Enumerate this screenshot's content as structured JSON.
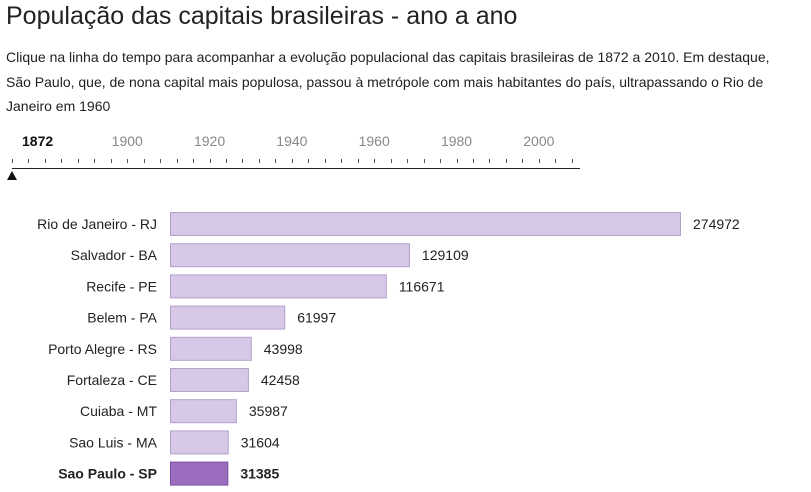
{
  "page": {
    "title": "População das capitais brasileiras - ano a ano",
    "description": "Clique na linha do tempo para acompanhar a evolução populacional das capitais brasileiras de 1872 a 2010. Em destaque, São Paulo, que, de nona capital mais populosa, passou à metrópole com mais habitantes do país, ultrapassando o Rio de Janeiro em 1960"
  },
  "timeline": {
    "selected_year": "1872",
    "labels": [
      "1900",
      "1920",
      "1940",
      "1960",
      "1980",
      "2000"
    ],
    "range": [
      1872,
      2010
    ]
  },
  "colors": {
    "bar_fill": "#d6c8e6",
    "bar_stroke": "#b3a0cc",
    "highlight_fill": "#9b6dbf",
    "highlight_stroke": "#7d4fa3"
  },
  "chart_data": {
    "type": "bar",
    "orientation": "horizontal",
    "categories": [
      "Rio de Janeiro - RJ",
      "Salvador - BA",
      "Recife - PE",
      "Belem - PA",
      "Porto Alegre - RS",
      "Fortaleza - CE",
      "Cuiaba - MT",
      "Sao Luis - MA",
      "Sao Paulo - SP"
    ],
    "values": [
      274972,
      129109,
      116671,
      61997,
      43998,
      42458,
      35987,
      31604,
      31385
    ],
    "value_labels": [
      "274972",
      "129109",
      "116671",
      "61997",
      "43998",
      "42458",
      "35987",
      "31604",
      "31385"
    ],
    "highlight": "Sao Paulo - SP",
    "title": "",
    "xlabel": "",
    "ylabel": "",
    "grid": false
  }
}
